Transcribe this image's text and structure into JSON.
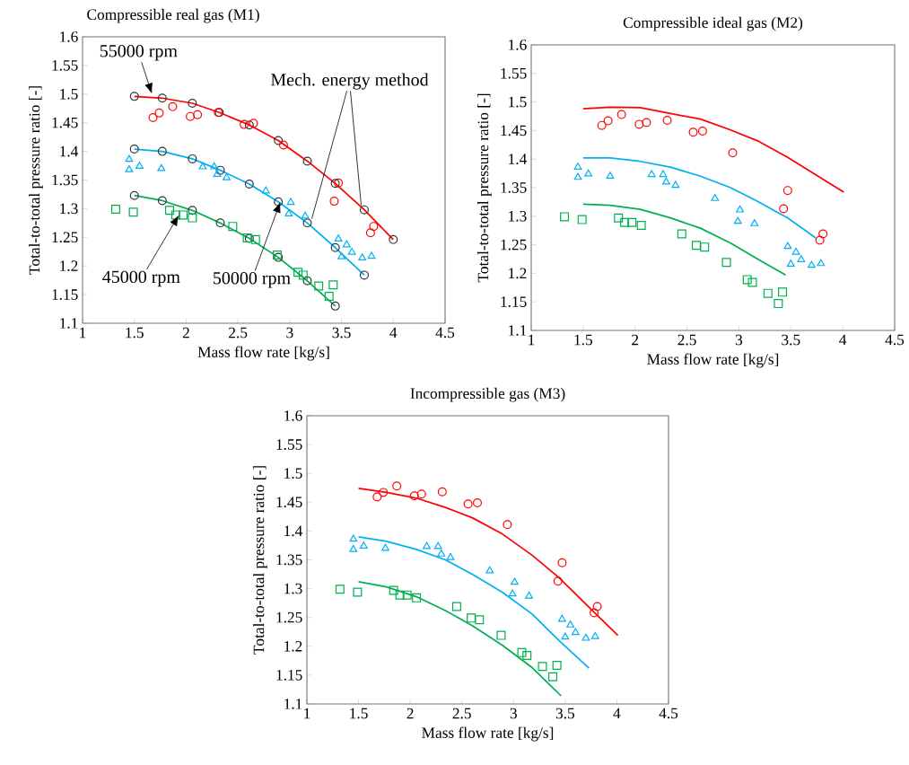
{
  "chart_data": [
    {
      "type": "scatter",
      "title": "Compressible real gas (M1)",
      "xlabel": "Mass flow rate [kg/s]",
      "ylabel": "Total-to-total pressure ratio [-]",
      "xlim": [
        1,
        4.5
      ],
      "ylim": [
        1.1,
        1.6
      ],
      "xticks": [
        1,
        1.5,
        2,
        2.5,
        3,
        3.5,
        4,
        4.5
      ],
      "yticks": [
        1.1,
        1.15,
        1.2,
        1.25,
        1.3,
        1.35,
        1.4,
        1.45,
        1.5,
        1.55,
        1.6
      ],
      "series": [
        {
          "type": "line",
          "color": "#ff0000",
          "marker": "none",
          "x": [
            1.5,
            1.77,
            2.06,
            2.32,
            2.61,
            2.89,
            3.17,
            3.44,
            3.72,
            4.0
          ],
          "values": [
            1.496,
            1.493,
            1.484,
            1.468,
            1.446,
            1.419,
            1.383,
            1.344,
            1.298,
            1.246
          ]
        },
        {
          "type": "line",
          "color": "#00b0f0",
          "marker": "none",
          "x": [
            1.5,
            1.77,
            2.06,
            2.33,
            2.61,
            2.89,
            3.17,
            3.44,
            3.72
          ],
          "values": [
            1.404,
            1.4,
            1.387,
            1.367,
            1.343,
            1.312,
            1.275,
            1.232,
            1.184
          ]
        },
        {
          "type": "line",
          "color": "#00b050",
          "marker": "none",
          "x": [
            1.5,
            1.77,
            2.06,
            2.33,
            2.61,
            2.89,
            3.17,
            3.44
          ],
          "values": [
            1.323,
            1.314,
            1.297,
            1.275,
            1.248,
            1.215,
            1.174,
            1.13
          ]
        },
        {
          "color": "#333333",
          "marker": "circle",
          "x": [
            1.5,
            1.77,
            2.06,
            2.32,
            2.61,
            2.89,
            3.17,
            3.44,
            3.72,
            4.0,
            1.5,
            1.77,
            2.06,
            2.33,
            2.61,
            2.89,
            3.17,
            3.44,
            3.72,
            1.5,
            1.77,
            2.06,
            2.33,
            2.61,
            2.89,
            3.17,
            3.44
          ],
          "values": [
            1.496,
            1.493,
            1.484,
            1.468,
            1.446,
            1.419,
            1.383,
            1.344,
            1.298,
            1.246,
            1.404,
            1.4,
            1.387,
            1.367,
            1.343,
            1.312,
            1.275,
            1.232,
            1.184,
            1.323,
            1.314,
            1.297,
            1.275,
            1.248,
            1.215,
            1.174,
            1.13
          ]
        },
        {
          "type": "scatter",
          "color": "#ff0000",
          "marker": "circle",
          "x": [
            1.68,
            1.74,
            1.87,
            2.04,
            2.11,
            2.31,
            2.56,
            2.65,
            2.94,
            3.47,
            3.43,
            3.81,
            3.78
          ],
          "values": [
            1.459,
            1.467,
            1.478,
            1.461,
            1.464,
            1.468,
            1.447,
            1.449,
            1.411,
            1.345,
            1.313,
            1.269,
            1.258
          ]
        },
        {
          "type": "scatter",
          "color": "#00b0f0",
          "marker": "triangle",
          "x": [
            1.45,
            1.45,
            1.55,
            1.76,
            2.16,
            2.27,
            2.3,
            2.39,
            2.77,
            3.01,
            2.99,
            3.15,
            3.47,
            3.55,
            3.6,
            3.5,
            3.7,
            3.79
          ],
          "values": [
            1.386,
            1.368,
            1.374,
            1.37,
            1.373,
            1.373,
            1.36,
            1.354,
            1.331,
            1.311,
            1.291,
            1.287,
            1.247,
            1.237,
            1.224,
            1.216,
            1.214,
            1.217
          ]
        },
        {
          "type": "scatter",
          "color": "#00b050",
          "marker": "square",
          "x": [
            1.32,
            1.49,
            1.84,
            1.9,
            1.97,
            2.06,
            2.45,
            2.59,
            2.67,
            2.88,
            3.08,
            3.13,
            3.28,
            3.42,
            3.38
          ],
          "values": [
            1.299,
            1.294,
            1.297,
            1.289,
            1.289,
            1.284,
            1.269,
            1.249,
            1.246,
            1.219,
            1.189,
            1.184,
            1.165,
            1.167,
            1.147
          ]
        }
      ],
      "annotations": [
        {
          "text": "55000 rpm",
          "x": 1.67,
          "y": 1.5
        },
        "45000 rpm",
        "50000 rpm",
        {
          "text": "Mech. energy method",
          "x": 3.69,
          "y": 1.306
        }
      ]
    },
    {
      "type": "scatter",
      "title": "Compressible ideal gas (M2)",
      "xlabel": "Mass flow rate [kg/s]",
      "ylabel": "Total-to-total pressure ratio [-]",
      "xlim": [
        1,
        4.5
      ],
      "ylim": [
        1.1,
        1.6
      ],
      "xticks": [
        1,
        1.5,
        2,
        2.5,
        3,
        3.5,
        4,
        4.5
      ],
      "yticks": [
        1.1,
        1.15,
        1.2,
        1.25,
        1.3,
        1.35,
        1.4,
        1.45,
        1.5,
        1.55,
        1.6
      ],
      "series": [
        {
          "type": "line",
          "color": "#ff0000",
          "marker": "none",
          "x": [
            1.5,
            1.76,
            2.05,
            2.34,
            2.63,
            2.92,
            3.18,
            3.47,
            3.78,
            4.01
          ],
          "values": [
            1.488,
            1.491,
            1.49,
            1.48,
            1.47,
            1.451,
            1.432,
            1.403,
            1.368,
            1.342
          ]
        },
        {
          "type": "line",
          "color": "#00b0f0",
          "marker": "none",
          "x": [
            1.5,
            1.76,
            2.05,
            2.34,
            2.63,
            2.92,
            3.18,
            3.47,
            3.74
          ],
          "values": [
            1.402,
            1.402,
            1.396,
            1.386,
            1.37,
            1.35,
            1.326,
            1.297,
            1.262
          ]
        },
        {
          "type": "line",
          "color": "#00b050",
          "marker": "none",
          "x": [
            1.5,
            1.76,
            2.05,
            2.34,
            2.63,
            2.92,
            3.21,
            3.45
          ],
          "values": [
            1.321,
            1.319,
            1.312,
            1.297,
            1.279,
            1.253,
            1.222,
            1.197
          ]
        },
        {
          "type": "scatter",
          "color": "#ff0000",
          "marker": "circle",
          "x": [
            1.68,
            1.74,
            1.87,
            2.04,
            2.11,
            2.31,
            2.56,
            2.65,
            2.94,
            3.47,
            3.43,
            3.81,
            3.78
          ],
          "values": [
            1.459,
            1.467,
            1.478,
            1.461,
            1.464,
            1.468,
            1.447,
            1.449,
            1.411,
            1.345,
            1.313,
            1.269,
            1.258
          ]
        },
        {
          "type": "scatter",
          "color": "#00b0f0",
          "marker": "triangle",
          "x": [
            1.45,
            1.45,
            1.55,
            1.76,
            2.16,
            2.27,
            2.3,
            2.39,
            2.77,
            3.01,
            2.99,
            3.15,
            3.47,
            3.55,
            3.6,
            3.5,
            3.7,
            3.79
          ],
          "values": [
            1.386,
            1.368,
            1.374,
            1.37,
            1.373,
            1.373,
            1.36,
            1.354,
            1.331,
            1.311,
            1.291,
            1.287,
            1.247,
            1.237,
            1.224,
            1.216,
            1.214,
            1.217
          ]
        },
        {
          "type": "scatter",
          "color": "#00b050",
          "marker": "square",
          "x": [
            1.32,
            1.49,
            1.84,
            1.9,
            1.97,
            2.06,
            2.45,
            2.59,
            2.67,
            2.88,
            3.08,
            3.13,
            3.28,
            3.42,
            3.38
          ],
          "values": [
            1.299,
            1.294,
            1.297,
            1.289,
            1.289,
            1.284,
            1.269,
            1.249,
            1.246,
            1.219,
            1.189,
            1.184,
            1.165,
            1.167,
            1.147
          ]
        }
      ]
    },
    {
      "type": "scatter",
      "title": "Incompressible gas (M3)",
      "xlabel": "Mass flow rate [kg/s]",
      "ylabel": "Total-to-total pressure ratio [-]",
      "xlim": [
        1,
        4.5
      ],
      "ylim": [
        1.1,
        1.6
      ],
      "xticks": [
        1,
        1.5,
        2,
        2.5,
        3,
        3.5,
        4,
        4.5
      ],
      "yticks": [
        1.1,
        1.15,
        1.2,
        1.25,
        1.3,
        1.35,
        1.4,
        1.45,
        1.5,
        1.55,
        1.6
      ],
      "series": [
        {
          "type": "line",
          "color": "#ff0000",
          "marker": "none",
          "x": [
            1.5,
            1.77,
            2.06,
            2.34,
            2.6,
            2.89,
            3.18,
            3.44,
            3.78,
            4.01
          ],
          "values": [
            1.474,
            1.467,
            1.457,
            1.441,
            1.423,
            1.395,
            1.358,
            1.319,
            1.259,
            1.219
          ]
        },
        {
          "type": "line",
          "color": "#00b0f0",
          "marker": "none",
          "x": [
            1.5,
            1.77,
            2.06,
            2.34,
            2.6,
            2.89,
            3.18,
            3.44,
            3.73
          ],
          "values": [
            1.39,
            1.382,
            1.368,
            1.35,
            1.325,
            1.294,
            1.256,
            1.21,
            1.162
          ]
        },
        {
          "type": "line",
          "color": "#00b050",
          "marker": "none",
          "x": [
            1.5,
            1.77,
            2.06,
            2.34,
            2.6,
            2.89,
            3.18,
            3.46
          ],
          "values": [
            1.312,
            1.303,
            1.286,
            1.262,
            1.236,
            1.202,
            1.163,
            1.114
          ]
        },
        {
          "type": "scatter",
          "color": "#ff0000",
          "marker": "circle",
          "x": [
            1.68,
            1.74,
            1.87,
            2.04,
            2.11,
            2.31,
            2.56,
            2.65,
            2.94,
            3.47,
            3.43,
            3.81,
            3.78
          ],
          "values": [
            1.459,
            1.467,
            1.478,
            1.461,
            1.464,
            1.468,
            1.447,
            1.449,
            1.411,
            1.345,
            1.313,
            1.269,
            1.258
          ]
        },
        {
          "type": "scatter",
          "color": "#00b0f0",
          "marker": "triangle",
          "x": [
            1.45,
            1.45,
            1.55,
            1.76,
            2.16,
            2.27,
            2.3,
            2.39,
            2.77,
            3.01,
            2.99,
            3.15,
            3.47,
            3.55,
            3.6,
            3.5,
            3.7,
            3.79
          ],
          "values": [
            1.386,
            1.368,
            1.374,
            1.37,
            1.373,
            1.373,
            1.36,
            1.354,
            1.331,
            1.311,
            1.291,
            1.287,
            1.247,
            1.237,
            1.224,
            1.216,
            1.214,
            1.217
          ]
        },
        {
          "type": "scatter",
          "color": "#00b050",
          "marker": "square",
          "x": [
            1.32,
            1.49,
            1.84,
            1.9,
            1.97,
            2.06,
            2.45,
            2.59,
            2.67,
            2.88,
            3.08,
            3.13,
            3.28,
            3.42,
            3.38
          ],
          "values": [
            1.299,
            1.294,
            1.297,
            1.289,
            1.289,
            1.284,
            1.269,
            1.249,
            1.246,
            1.219,
            1.189,
            1.184,
            1.165,
            1.167,
            1.147
          ]
        }
      ]
    }
  ]
}
